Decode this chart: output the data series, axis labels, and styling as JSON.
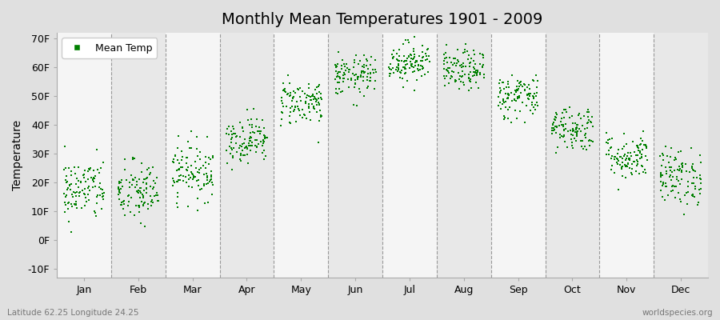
{
  "title": "Monthly Mean Temperatures 1901 - 2009",
  "ylabel": "Temperature",
  "xlabel_labels": [
    "Jan",
    "Feb",
    "Mar",
    "Apr",
    "May",
    "Jun",
    "Jul",
    "Aug",
    "Sep",
    "Oct",
    "Nov",
    "Dec"
  ],
  "ytick_labels": [
    "-10F",
    "0F",
    "10F",
    "20F",
    "30F",
    "40F",
    "50F",
    "60F",
    "70F"
  ],
  "ytick_values": [
    -10,
    0,
    10,
    20,
    30,
    40,
    50,
    60,
    70
  ],
  "ylim": [
    -13,
    72
  ],
  "dot_color": "#008000",
  "dot_size": 3,
  "legend_label": "Mean Temp",
  "legend_marker_color": "#008000",
  "bg_color": "#e0e0e0",
  "plot_bg_color_light": "#f5f5f5",
  "plot_bg_color_dark": "#e8e8e8",
  "dashed_line_color": "#999999",
  "footer_left": "Latitude 62.25 Longitude 24.25",
  "footer_right": "worldspecies.org",
  "monthly_means": [
    17.5,
    16.5,
    24,
    35,
    48,
    57,
    62,
    59,
    50,
    39,
    29,
    22
  ],
  "monthly_stds": [
    5.5,
    5.5,
    5,
    4,
    4,
    3.5,
    3.5,
    3.5,
    4,
    4,
    4,
    5
  ],
  "n_years": 109
}
